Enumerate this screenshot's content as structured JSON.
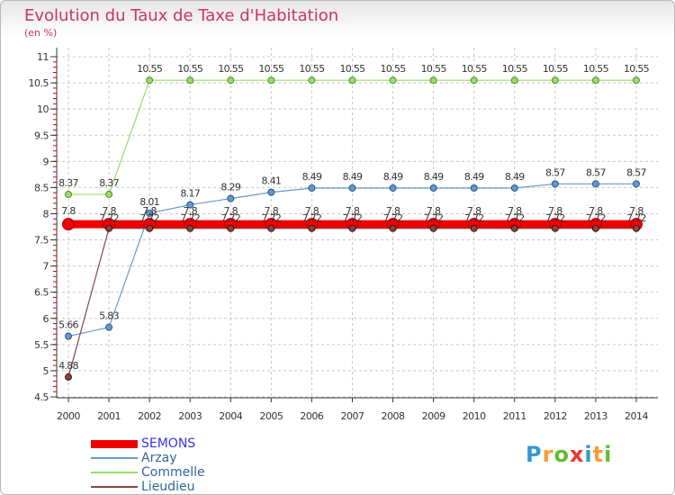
{
  "chart_data": {
    "type": "line",
    "title": "Evolution du Taux de Taxe d'Habitation",
    "ylabel": "(en %)",
    "xlabel": "",
    "categories": [
      "2000",
      "2001",
      "2002",
      "2003",
      "2004",
      "2005",
      "2006",
      "2007",
      "2008",
      "2009",
      "2010",
      "2011",
      "2012",
      "2013",
      "2014"
    ],
    "ylim": [
      4.5,
      11
    ],
    "yticks": [
      "4.5",
      "5",
      "5.5",
      "6",
      "6.5",
      "7",
      "7.5",
      "8",
      "8.5",
      "9",
      "9.5",
      "10",
      "10.5",
      "11"
    ],
    "grid": true,
    "legend_position": "bottom-left",
    "series": [
      {
        "name": "SEMONS",
        "color": "#ee0000",
        "values": [
          7.8,
          7.8,
          7.8,
          7.8,
          7.8,
          7.8,
          7.8,
          7.8,
          7.8,
          7.8,
          7.8,
          7.8,
          7.8,
          7.8,
          7.8
        ],
        "labels": [
          "7.8",
          "7.8",
          "7.8",
          "7.8",
          "7.8",
          "7.8",
          "7.8",
          "7.8",
          "7.8",
          "7.8",
          "7.8",
          "7.8",
          "7.8",
          "7.8",
          "7.8"
        ]
      },
      {
        "name": "Arzay",
        "color": "#6699cc",
        "values": [
          5.66,
          5.83,
          8.01,
          8.17,
          8.29,
          8.41,
          8.49,
          8.49,
          8.49,
          8.49,
          8.49,
          8.49,
          8.57,
          8.57,
          8.57
        ],
        "labels": [
          "5.66",
          "5.83",
          "8.01",
          "8.17",
          "8.29",
          "8.41",
          "8.49",
          "8.49",
          "8.49",
          "8.49",
          "8.49",
          "8.49",
          "8.57",
          "8.57",
          "8.57"
        ]
      },
      {
        "name": "Commelle",
        "color": "#99dd66",
        "values": [
          8.37,
          8.37,
          10.55,
          10.55,
          10.55,
          10.55,
          10.55,
          10.55,
          10.55,
          10.55,
          10.55,
          10.55,
          10.55,
          10.55,
          10.55
        ],
        "labels": [
          "8.37",
          "8.37",
          "10.55",
          "10.55",
          "10.55",
          "10.55",
          "10.55",
          "10.55",
          "10.55",
          "10.55",
          "10.55",
          "10.55",
          "10.55",
          "10.55",
          "10.55"
        ]
      },
      {
        "name": "Lieudieu",
        "color": "#884444",
        "values": [
          4.88,
          7.72,
          7.72,
          7.72,
          7.72,
          7.72,
          7.72,
          7.72,
          7.72,
          7.72,
          7.72,
          7.72,
          7.72,
          7.72,
          7.72
        ],
        "labels": [
          "4.88",
          "7.72",
          "7.72",
          "7.72",
          "7.72",
          "7.72",
          "7.72",
          "7.72",
          "7.72",
          "7.72",
          "7.72",
          "7.72",
          "7.72",
          "7.72",
          "7.72"
        ]
      }
    ]
  },
  "legend": {
    "items": [
      {
        "label": "SEMONS",
        "color": "#ee0000",
        "text_color": "#3333ee"
      },
      {
        "label": "Arzay",
        "color": "#6699cc",
        "text_color": "#336699"
      },
      {
        "label": "Commelle",
        "color": "#99dd66",
        "text_color": "#336699"
      },
      {
        "label": "Lieudieu",
        "color": "#884444",
        "text_color": "#336699"
      }
    ]
  },
  "logo": {
    "text": "Proxiti",
    "letters": [
      {
        "ch": "P",
        "color": "#3399cc"
      },
      {
        "ch": "r",
        "color": "#ff9933"
      },
      {
        "ch": "o",
        "color": "#66bb33"
      },
      {
        "ch": "x",
        "color": "#ee3333"
      },
      {
        "ch": "i",
        "color": "#3399cc"
      },
      {
        "ch": "t",
        "color": "#ff9933"
      },
      {
        "ch": "i",
        "color": "#66bb33"
      }
    ]
  }
}
